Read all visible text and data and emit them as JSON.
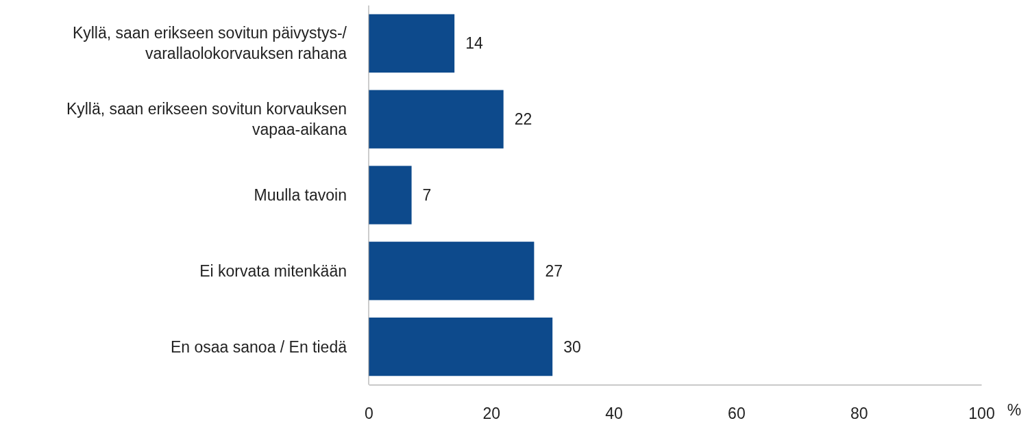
{
  "chart_data": {
    "type": "bar",
    "orientation": "horizontal",
    "xlabel": "%",
    "categories": [
      "Kyllä, saan erikseen sovitun päivystys-/ varallaolokorvauksen rahana",
      "Kyllä, saan erikseen sovitun korvauksen vapaa-aikana",
      "Muulla tavoin",
      "Ei korvata mitenkään",
      "En osaa sanoa / En tiedä"
    ],
    "values": [
      14,
      22,
      7,
      27,
      30
    ],
    "color": "#0d4a8c",
    "xlim": [
      0,
      100
    ],
    "xticks": [
      0,
      20,
      40,
      60,
      80,
      100
    ],
    "grid": false,
    "data_labels": true
  }
}
